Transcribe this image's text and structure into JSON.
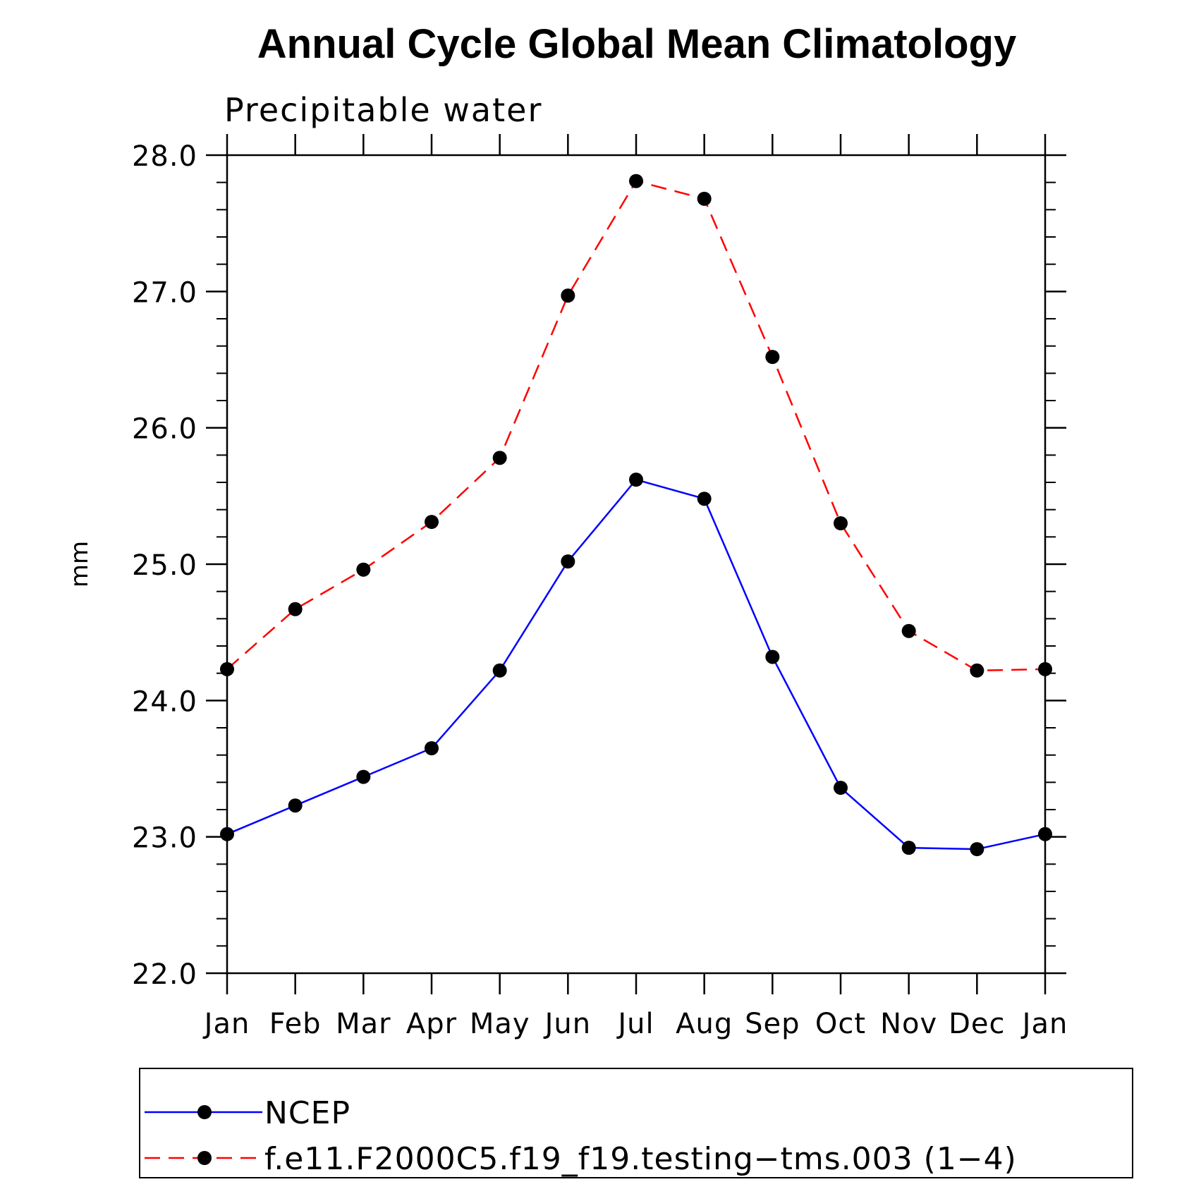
{
  "chart_data": {
    "type": "line",
    "title": "Annual Cycle Global Mean Climatology",
    "subtitle": "Precipitable water",
    "xlabel": "",
    "ylabel": "mm",
    "categories": [
      "Jan",
      "Feb",
      "Mar",
      "Apr",
      "May",
      "Jun",
      "Jul",
      "Aug",
      "Sep",
      "Oct",
      "Nov",
      "Dec",
      "Jan"
    ],
    "ylim": [
      22.0,
      28.0
    ],
    "yticks": [
      "22.0",
      "23.0",
      "24.0",
      "25.0",
      "26.0",
      "27.0",
      "28.0"
    ],
    "grid": false,
    "legend_position": "bottom",
    "series": [
      {
        "name": "NCEP",
        "color": "#0000ff",
        "line_style": "solid",
        "marker": "filled-circle",
        "values": [
          23.02,
          23.23,
          23.44,
          23.65,
          24.22,
          25.02,
          25.62,
          25.48,
          24.32,
          23.36,
          22.92,
          22.91,
          23.02
        ]
      },
      {
        "name": "f.e11.F2000C5.f19_f19.testing−tms.003 (1−4)",
        "color": "#ff0000",
        "line_style": "dashed",
        "marker": "filled-circle",
        "values": [
          24.23,
          24.67,
          24.96,
          25.31,
          25.78,
          26.97,
          27.81,
          27.68,
          26.52,
          25.3,
          24.51,
          24.22,
          24.23
        ]
      }
    ]
  }
}
